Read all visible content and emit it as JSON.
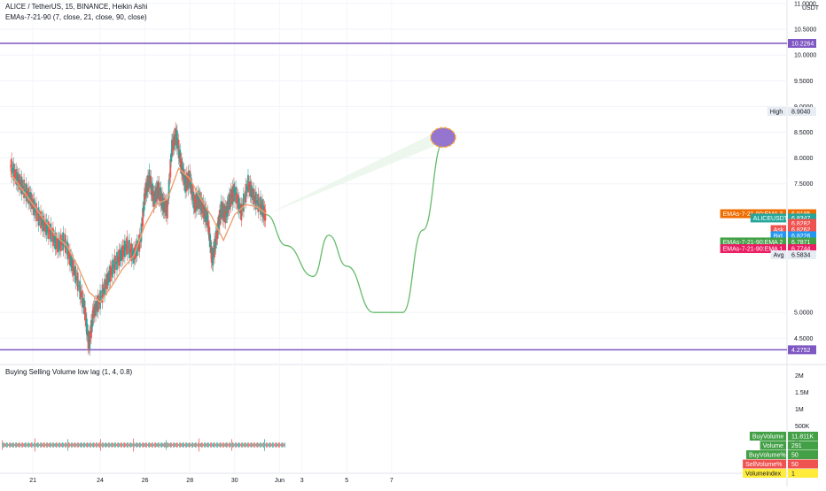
{
  "header": {
    "symbol_line": "ALICE / TetherUS, 15, BINANCE, Heikin Ashi",
    "indicator_line": "EMAs-7-21-90 (7, close, 21, close, 90, close)",
    "volume_indicator_line": "Buying Selling Volume low lag (1, 4, 0.8)"
  },
  "colors": {
    "up_candle": "#26a69a",
    "down_candle": "#ef5350",
    "ema_line": "#f0a070",
    "horizontal_line": "#7e57c2",
    "path_line": "#66bb6a",
    "path_fill": "#e8f5e9",
    "target_ellipse": "#9575cd",
    "target_outline": "#ffa726"
  },
  "chart_data": [
    {
      "type": "line",
      "title": "ALICE / TetherUS, 15, BINANCE, Heikin Ashi",
      "price_axis": {
        "currency": "USDT",
        "range": [
          4.0,
          11.0
        ],
        "ticks": [
          "11.0000",
          "10.5000",
          "10.0000",
          "9.5000",
          "9.0000",
          "8.5000",
          "8.0000",
          "7.5000",
          "5.0000",
          "4.5000"
        ]
      },
      "time_axis": {
        "ticks": [
          "21",
          "24",
          "26",
          "28",
          "30",
          "Jun",
          "3",
          "5",
          "7"
        ]
      },
      "price_series": {
        "name": "ALICEUSDT",
        "x": [
          20.0,
          20.3,
          20.6,
          20.9,
          21.2,
          21.5,
          21.8,
          22.1,
          22.4,
          22.7,
          23.0,
          23.3,
          23.5,
          23.7,
          24.0,
          24.3,
          24.6,
          24.9,
          25.2,
          25.5,
          25.8,
          26.0,
          26.2,
          26.4,
          26.6,
          26.8,
          27.0,
          27.2,
          27.4,
          27.6,
          27.8,
          28.0,
          28.2,
          28.4,
          28.6,
          28.8,
          29.0,
          29.2,
          29.4,
          29.6,
          29.8,
          30.0,
          30.3,
          30.6,
          30.9,
          31.2,
          31.4
        ],
        "y": [
          7.85,
          7.6,
          7.4,
          7.2,
          6.9,
          6.7,
          6.55,
          6.3,
          6.4,
          6.0,
          5.6,
          5.1,
          4.35,
          5.0,
          5.25,
          5.6,
          5.9,
          6.1,
          6.3,
          6.1,
          6.4,
          7.3,
          7.6,
          7.2,
          7.4,
          7.1,
          7.0,
          8.2,
          8.45,
          7.9,
          7.5,
          7.6,
          7.1,
          7.2,
          7.0,
          6.8,
          6.0,
          6.5,
          7.0,
          6.9,
          7.2,
          7.35,
          6.95,
          7.5,
          7.2,
          7.05,
          6.85
        ]
      },
      "ema_series": [
        {
          "name": "EMAs-7-21-90:EMA 3",
          "x": [
            20.0,
            20.5,
            21.0,
            21.5,
            22.0,
            22.5,
            23.0,
            23.5,
            24.0,
            24.5,
            25.0,
            25.5,
            26.0,
            26.5,
            27.0,
            27.5,
            28.0,
            28.5,
            29.0,
            29.5,
            30.0,
            30.5,
            31.0,
            31.4
          ],
          "y": [
            7.7,
            7.4,
            7.1,
            6.8,
            6.5,
            6.3,
            5.9,
            5.4,
            5.2,
            5.5,
            5.85,
            6.1,
            6.7,
            7.1,
            7.2,
            7.8,
            7.6,
            7.2,
            6.85,
            6.4,
            6.9,
            7.1,
            7.05,
            6.92
          ]
        }
      ],
      "horizontal_lines": [
        {
          "label": "10.2264",
          "price": 10.2264
        },
        {
          "label": "4.2752",
          "price": 4.2752
        }
      ],
      "projection_path": {
        "x": [
          31.4,
          32.3,
          33.5,
          34.2,
          35.0,
          36.2,
          37.5,
          38.4,
          39.3
        ],
        "y": [
          6.9,
          6.3,
          5.7,
          6.5,
          5.9,
          5.0,
          5.0,
          6.6,
          8.3
        ]
      },
      "target": {
        "x": 39.3,
        "y": 8.4
      },
      "price_labels": [
        {
          "tag": "",
          "value": "10.2264",
          "price": 10.2264,
          "bg": "#7e57c2",
          "fg": "#ffffff"
        },
        {
          "tag": "High",
          "value": "8.9040",
          "price": 8.904,
          "bg": "#e8ecf3",
          "fg": "#131722"
        },
        {
          "tag": "EMAs-7-21-90:EMA 3",
          "value": "6.9185",
          "price": 6.9185,
          "bg": "#ef6c00",
          "fg": "#ffffff"
        },
        {
          "tag": "ALICEUSDT",
          "value": "6.8347",
          "price": 6.8347,
          "bg": "#26a69a",
          "fg": "#ffffff",
          "extra": [
            "−7.83%",
            "14:03"
          ]
        },
        {
          "tag": "",
          "value": "6.8282",
          "price": 6.73,
          "bg": "#ef5350",
          "fg": "#ffffff"
        },
        {
          "tag": "Ask",
          "value": "6.8262",
          "price": 6.61,
          "bg": "#ef5350",
          "fg": "#ffffff"
        },
        {
          "tag": "Bid",
          "value": "6.8226",
          "price": 6.49,
          "bg": "#2196f3",
          "fg": "#ffffff"
        },
        {
          "tag": "EMAs-7-21-90:EMA 2",
          "value": "6.7871",
          "price": 6.37,
          "bg": "#43a047",
          "fg": "#ffffff"
        },
        {
          "tag": "EMAs-7-21-90:EMA 1",
          "value": "6.7744",
          "price": 6.24,
          "bg": "#e91e63",
          "fg": "#ffffff"
        },
        {
          "tag": "Avg",
          "value": "6.5834",
          "price": 6.12,
          "bg": "#e8ecf3",
          "fg": "#131722"
        },
        {
          "tag": "",
          "value": "4.2752",
          "price": 4.2752,
          "bg": "#7e57c2",
          "fg": "#ffffff"
        }
      ]
    },
    {
      "type": "bar",
      "title": "Buying Selling Volume low lag (1, 4, 0.8)",
      "volume_axis": {
        "ticks": [
          "2M",
          "1.5M",
          "1M",
          "500K",
          "K"
        ]
      },
      "volume_labels": [
        {
          "tag": "BuyVolume",
          "value": "11.811K",
          "bg": "#43a047",
          "fg": "#ffffff"
        },
        {
          "tag": "Volume",
          "value": "291",
          "bg": "#43a047",
          "fg": "#ffffff"
        },
        {
          "tag": "BuyVolume%",
          "value": "50",
          "bg": "#43a047",
          "fg": "#ffffff"
        },
        {
          "tag": "SellVolume%",
          "value": "50",
          "bg": "#ef5350",
          "fg": "#ffffff"
        },
        {
          "tag": "Volumeindex",
          "value": "1",
          "bg": "#ffeb3b",
          "fg": "#131722"
        }
      ]
    }
  ]
}
